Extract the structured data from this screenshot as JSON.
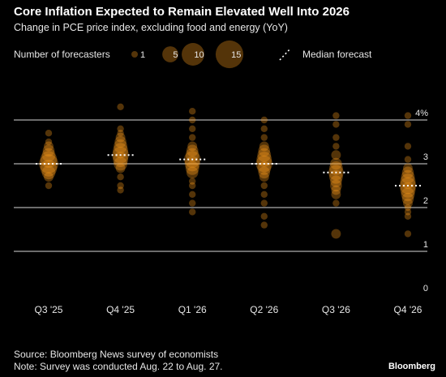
{
  "header": {
    "title": "Core Inflation Expected to Remain Elevated Well Into 2026",
    "subtitle": "Change in PCE price index, excluding food and energy (YoY)"
  },
  "legend": {
    "size_label": "Number of forecasters",
    "sizes": [
      1,
      5,
      10,
      15
    ],
    "median_label": "Median forecast"
  },
  "footer": {
    "source": "Source: Bloomberg News survey of economists",
    "note": "Note: Survey was conducted Aug. 22 to Aug. 27.",
    "brand": "Bloomberg"
  },
  "colors": {
    "background": "#000000",
    "dot": "#ff9e1b",
    "grid": "#ffffff",
    "median": "#ffffff"
  },
  "chart_data": {
    "type": "scatter",
    "title": "Core Inflation Expected to Remain Elevated Well Into 2026",
    "subtitle": "Change in PCE price index, excluding food and energy (YoY)",
    "xlabel": "",
    "ylabel": "",
    "categories": [
      "Q3 '25",
      "Q4 '25",
      "Q1 '26",
      "Q2 '26",
      "Q3 '26",
      "Q4 '26"
    ],
    "ylim": [
      0,
      4
    ],
    "yticks": [
      0,
      1,
      2,
      3,
      4
    ],
    "ytick_labels": [
      "0",
      "1",
      "2",
      "3",
      "4%"
    ],
    "grid": true,
    "legend_position": "top",
    "medians": [
      3.0,
      3.2,
      3.1,
      3.0,
      2.8,
      2.5
    ],
    "series": [
      {
        "category": "Q3 '25",
        "points": [
          {
            "y": 3.7,
            "count": 1
          },
          {
            "y": 3.5,
            "count": 1
          },
          {
            "y": 3.4,
            "count": 2
          },
          {
            "y": 3.3,
            "count": 3
          },
          {
            "y": 3.2,
            "count": 4
          },
          {
            "y": 3.1,
            "count": 6
          },
          {
            "y": 3.0,
            "count": 8
          },
          {
            "y": 2.9,
            "count": 6
          },
          {
            "y": 2.8,
            "count": 4
          },
          {
            "y": 2.7,
            "count": 2
          },
          {
            "y": 2.5,
            "count": 1
          }
        ]
      },
      {
        "category": "Q4 '25",
        "points": [
          {
            "y": 4.3,
            "count": 1
          },
          {
            "y": 3.8,
            "count": 1
          },
          {
            "y": 3.7,
            "count": 1
          },
          {
            "y": 3.6,
            "count": 2
          },
          {
            "y": 3.5,
            "count": 3
          },
          {
            "y": 3.4,
            "count": 4
          },
          {
            "y": 3.3,
            "count": 5
          },
          {
            "y": 3.2,
            "count": 6
          },
          {
            "y": 3.1,
            "count": 5
          },
          {
            "y": 3.0,
            "count": 4
          },
          {
            "y": 2.9,
            "count": 2
          },
          {
            "y": 2.7,
            "count": 1
          },
          {
            "y": 2.5,
            "count": 1
          },
          {
            "y": 2.4,
            "count": 1
          }
        ]
      },
      {
        "category": "Q1 '26",
        "points": [
          {
            "y": 4.2,
            "count": 1
          },
          {
            "y": 4.0,
            "count": 1
          },
          {
            "y": 3.8,
            "count": 1
          },
          {
            "y": 3.6,
            "count": 1
          },
          {
            "y": 3.4,
            "count": 2
          },
          {
            "y": 3.3,
            "count": 3
          },
          {
            "y": 3.2,
            "count": 4
          },
          {
            "y": 3.1,
            "count": 6
          },
          {
            "y": 3.0,
            "count": 5
          },
          {
            "y": 2.9,
            "count": 4
          },
          {
            "y": 2.8,
            "count": 3
          },
          {
            "y": 2.6,
            "count": 1
          },
          {
            "y": 2.5,
            "count": 1
          },
          {
            "y": 2.3,
            "count": 1
          },
          {
            "y": 2.1,
            "count": 1
          },
          {
            "y": 1.9,
            "count": 1
          }
        ]
      },
      {
        "category": "Q2 '26",
        "points": [
          {
            "y": 4.0,
            "count": 1
          },
          {
            "y": 3.8,
            "count": 1
          },
          {
            "y": 3.6,
            "count": 1
          },
          {
            "y": 3.4,
            "count": 2
          },
          {
            "y": 3.3,
            "count": 3
          },
          {
            "y": 3.2,
            "count": 4
          },
          {
            "y": 3.1,
            "count": 5
          },
          {
            "y": 3.0,
            "count": 6
          },
          {
            "y": 2.9,
            "count": 4
          },
          {
            "y": 2.8,
            "count": 3
          },
          {
            "y": 2.7,
            "count": 2
          },
          {
            "y": 2.5,
            "count": 1
          },
          {
            "y": 2.3,
            "count": 1
          },
          {
            "y": 2.1,
            "count": 1
          },
          {
            "y": 1.8,
            "count": 1
          },
          {
            "y": 1.6,
            "count": 1
          }
        ]
      },
      {
        "category": "Q3 '26",
        "points": [
          {
            "y": 4.1,
            "count": 1
          },
          {
            "y": 3.9,
            "count": 1
          },
          {
            "y": 3.6,
            "count": 1
          },
          {
            "y": 3.4,
            "count": 1
          },
          {
            "y": 3.2,
            "count": 2
          },
          {
            "y": 3.0,
            "count": 3
          },
          {
            "y": 2.9,
            "count": 4
          },
          {
            "y": 2.8,
            "count": 5
          },
          {
            "y": 2.7,
            "count": 4
          },
          {
            "y": 2.6,
            "count": 3
          },
          {
            "y": 2.5,
            "count": 3
          },
          {
            "y": 2.4,
            "count": 2
          },
          {
            "y": 2.3,
            "count": 2
          },
          {
            "y": 2.1,
            "count": 1
          },
          {
            "y": 1.4,
            "count": 2
          }
        ]
      },
      {
        "category": "Q4 '26",
        "points": [
          {
            "y": 4.1,
            "count": 1
          },
          {
            "y": 3.9,
            "count": 1
          },
          {
            "y": 3.4,
            "count": 1
          },
          {
            "y": 3.1,
            "count": 1
          },
          {
            "y": 2.9,
            "count": 2
          },
          {
            "y": 2.8,
            "count": 3
          },
          {
            "y": 2.7,
            "count": 4
          },
          {
            "y": 2.6,
            "count": 5
          },
          {
            "y": 2.5,
            "count": 6
          },
          {
            "y": 2.4,
            "count": 5
          },
          {
            "y": 2.3,
            "count": 4
          },
          {
            "y": 2.2,
            "count": 3
          },
          {
            "y": 2.1,
            "count": 2
          },
          {
            "y": 2.0,
            "count": 1
          },
          {
            "y": 1.9,
            "count": 1
          },
          {
            "y": 1.8,
            "count": 1
          },
          {
            "y": 1.4,
            "count": 1
          }
        ]
      }
    ]
  }
}
